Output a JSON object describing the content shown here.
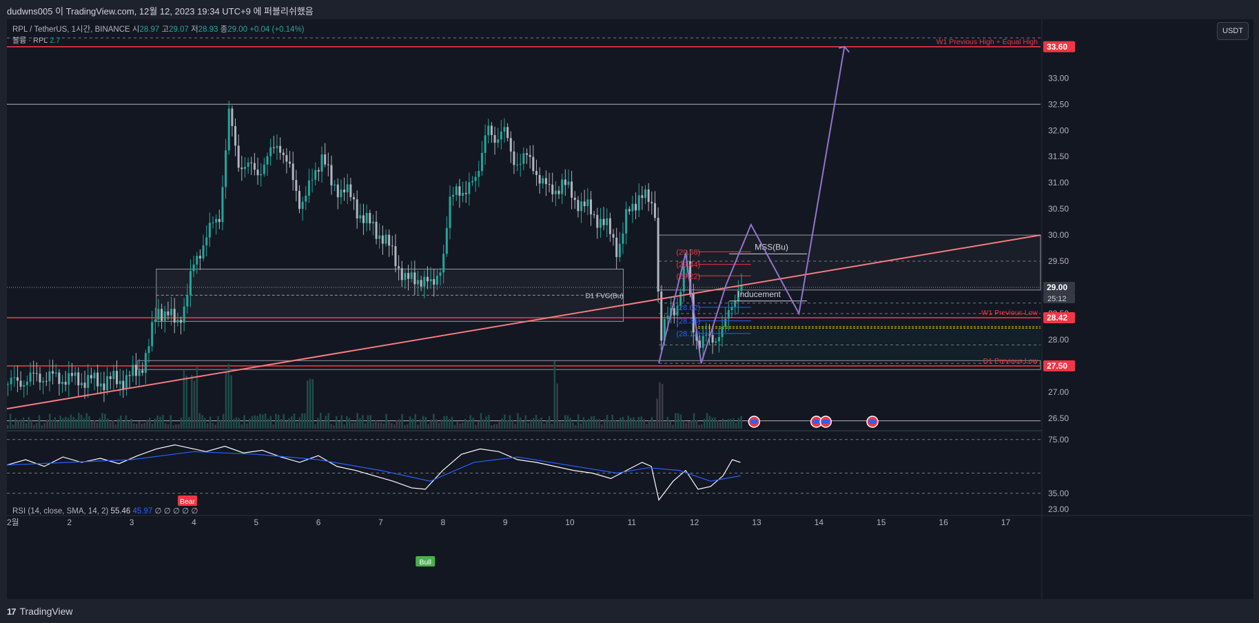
{
  "header": {
    "title": "dudwns005 이 TradingView.com, 12월 12, 2023 19:34 UTC+9 에 퍼블리쉬했음"
  },
  "legend": {
    "symbol": "RPL / TetherUS, 1시간, BINANCE",
    "o_label": "시",
    "o": "28.97",
    "h_label": "고",
    "h": "29.07",
    "l_label": "저",
    "l": "28.93",
    "c_label": "종",
    "c": "29.00",
    "change": "+0.04 (+0.14%)",
    "volume_label": "볼륨 · RPL",
    "volume": "2.7"
  },
  "currency_button": "USDT",
  "rsi_legend": {
    "label": "RSI (14, close, SMA, 14, 2)",
    "value": "55.46",
    "sma": "45.97",
    "placeholders": "∅ ∅ ∅ ∅ ∅"
  },
  "footer": {
    "brand": "TradingView"
  },
  "colors": {
    "background": "#131722",
    "red_line": "#f23645",
    "pink_line": "#f77c80",
    "purple_path": "#9575cd",
    "rsi_line": "#ffffff",
    "rsi_sma": "#2962ff",
    "up_candle": "#26a69a",
    "down_candle": "#b2b5be"
  },
  "chart_data": {
    "type": "candlestick",
    "title": "RPL / TetherUS, 1시간, BINANCE",
    "x_ticks": [
      "2",
      "3",
      "4",
      "5",
      "6",
      "7",
      "8",
      "9",
      "10",
      "11",
      "12",
      "13",
      "14",
      "15",
      "16",
      "17"
    ],
    "x_first_label": "2월",
    "y_ticks": [
      26.5,
      27.0,
      27.5,
      28.0,
      28.5,
      29.0,
      29.5,
      30.0,
      30.5,
      31.0,
      31.5,
      32.0,
      32.5,
      33.0
    ],
    "ylim": [
      26.3,
      33.9
    ],
    "xlim": [
      1.0,
      17.6
    ],
    "price_path": [
      [
        1.0,
        27.15
      ],
      [
        1.5,
        27.3
      ],
      [
        2.0,
        27.25
      ],
      [
        2.5,
        27.2
      ],
      [
        2.9,
        27.25
      ],
      [
        3.1,
        27.4
      ],
      [
        3.25,
        27.8
      ],
      [
        3.4,
        28.6
      ],
      [
        3.55,
        28.5
      ],
      [
        3.7,
        28.3
      ],
      [
        3.85,
        28.7
      ],
      [
        4.0,
        29.5
      ],
      [
        4.2,
        30.0
      ],
      [
        4.4,
        30.4
      ],
      [
        4.55,
        32.3
      ],
      [
        4.7,
        31.4
      ],
      [
        4.85,
        31.3
      ],
      [
        5.0,
        31.2
      ],
      [
        5.2,
        31.5
      ],
      [
        5.35,
        31.8
      ],
      [
        5.5,
        31.3
      ],
      [
        5.7,
        30.6
      ],
      [
        5.85,
        30.9
      ],
      [
        6.05,
        31.6
      ],
      [
        6.2,
        30.9
      ],
      [
        6.4,
        30.9
      ],
      [
        6.6,
        30.5
      ],
      [
        6.8,
        30.2
      ],
      [
        7.0,
        30.0
      ],
      [
        7.2,
        29.6
      ],
      [
        7.4,
        29.1
      ],
      [
        7.6,
        29.2
      ],
      [
        7.8,
        29.0
      ],
      [
        8.0,
        29.6
      ],
      [
        8.1,
        30.6
      ],
      [
        8.2,
        31.0
      ],
      [
        8.35,
        30.7
      ],
      [
        8.55,
        31.3
      ],
      [
        8.7,
        32.0
      ],
      [
        8.8,
        31.8
      ],
      [
        8.95,
        32.1
      ],
      [
        9.1,
        31.4
      ],
      [
        9.3,
        31.5
      ],
      [
        9.5,
        31.2
      ],
      [
        9.7,
        30.8
      ],
      [
        9.9,
        31.0
      ],
      [
        10.1,
        30.7
      ],
      [
        10.3,
        30.5
      ],
      [
        10.5,
        30.3
      ],
      [
        10.7,
        30.0
      ],
      [
        10.8,
        29.7
      ],
      [
        10.95,
        30.4
      ],
      [
        11.15,
        30.8
      ],
      [
        11.3,
        30.6
      ],
      [
        11.4,
        30.5
      ],
      [
        11.47,
        27.95
      ],
      [
        11.62,
        28.5
      ],
      [
        11.75,
        28.7
      ],
      [
        11.9,
        29.5
      ],
      [
        12.0,
        28.3
      ],
      [
        12.1,
        27.9
      ],
      [
        12.2,
        28.0
      ],
      [
        12.35,
        28.05
      ],
      [
        12.5,
        28.2
      ],
      [
        12.6,
        28.6
      ],
      [
        12.72,
        29.0
      ],
      [
        12.78,
        29.0
      ]
    ],
    "current_price": 29.0,
    "countdown": "25:12",
    "horizontal_levels": [
      {
        "label": "W1 Previous High + Equal High",
        "price": 33.6,
        "color": "#f23645"
      },
      {
        "label": "W1 Previous Low",
        "price": 28.42,
        "color": "#f23645"
      },
      {
        "label": "D1 Previous Low",
        "price": 27.5,
        "color": "#f23645"
      },
      {
        "price": 32.5,
        "color": "#b2b5be"
      },
      {
        "price": 26.45,
        "color": "#b2b5be"
      }
    ],
    "price_badges": [
      {
        "value": "33.60",
        "price": 33.6,
        "color": "#f23645"
      },
      {
        "value": "28.42",
        "price": 28.42,
        "color": "#f23645"
      },
      {
        "value": "27.50",
        "price": 27.5,
        "color": "#f23645"
      },
      {
        "value": "29.00",
        "price": 29.0,
        "color": "#363a45"
      }
    ],
    "zones": [
      {
        "label": "D1 FVG(Bu)",
        "x0": 3.4,
        "x1": 10.9,
        "y0": 28.35,
        "y1": 29.35
      },
      {
        "label": "MSS(Bu)",
        "x": 12.9,
        "price": 29.64
      },
      {
        "label": "Inducement",
        "x": 12.9,
        "price": 28.74
      }
    ],
    "fib_labels_red": [
      {
        "label": "(29.68)",
        "price": 29.68
      },
      {
        "label": "(29.44)",
        "price": 29.44
      },
      {
        "label": "(29.22)",
        "price": 29.22
      }
    ],
    "fib_labels_blue": [
      {
        "label": "(28.62)",
        "price": 28.62
      },
      {
        "label": "(28.36)",
        "price": 28.36
      },
      {
        "label": "(28.12)",
        "price": 28.12
      }
    ],
    "trendline": {
      "x0": 1.0,
      "y0": 26.68,
      "x1": 17.6,
      "y1": 30.0
    },
    "projection_path": [
      [
        11.47,
        27.55
      ],
      [
        11.9,
        29.65
      ],
      [
        12.15,
        27.55
      ],
      [
        12.55,
        29.05
      ],
      [
        12.95,
        30.2
      ],
      [
        13.72,
        28.5
      ],
      [
        14.45,
        33.6
      ]
    ],
    "event_markers": [
      13.0,
      14.0,
      14.15,
      14.9
    ],
    "rsi": {
      "ylim": [
        20,
        80
      ],
      "y_ticks": [
        75.0,
        35.0,
        23.0
      ],
      "value": 55.46,
      "sma_value": 45.97,
      "signals": [
        {
          "label": "Bear",
          "x": 3.9
        },
        {
          "label": "Bull",
          "x": 7.72
        }
      ],
      "path": [
        [
          1.0,
          56
        ],
        [
          1.3,
          60
        ],
        [
          1.6,
          55
        ],
        [
          1.9,
          62
        ],
        [
          2.2,
          58
        ],
        [
          2.5,
          61
        ],
        [
          2.8,
          57
        ],
        [
          3.1,
          63
        ],
        [
          3.4,
          68
        ],
        [
          3.7,
          71
        ],
        [
          3.9,
          69
        ],
        [
          4.2,
          66
        ],
        [
          4.5,
          70
        ],
        [
          4.8,
          65
        ],
        [
          5.1,
          67
        ],
        [
          5.4,
          62
        ],
        [
          5.7,
          58
        ],
        [
          6.0,
          63
        ],
        [
          6.3,
          55
        ],
        [
          6.6,
          52
        ],
        [
          6.9,
          48
        ],
        [
          7.2,
          44
        ],
        [
          7.5,
          39
        ],
        [
          7.72,
          38
        ],
        [
          8.0,
          52
        ],
        [
          8.3,
          64
        ],
        [
          8.6,
          68
        ],
        [
          8.9,
          66
        ],
        [
          9.2,
          60
        ],
        [
          9.5,
          58
        ],
        [
          9.8,
          55
        ],
        [
          10.1,
          52
        ],
        [
          10.4,
          50
        ],
        [
          10.7,
          46
        ],
        [
          10.95,
          52
        ],
        [
          11.2,
          58
        ],
        [
          11.35,
          55
        ],
        [
          11.47,
          30
        ],
        [
          11.7,
          44
        ],
        [
          11.9,
          52
        ],
        [
          12.1,
          38
        ],
        [
          12.3,
          40
        ],
        [
          12.5,
          48
        ],
        [
          12.65,
          60
        ],
        [
          12.78,
          58
        ]
      ],
      "sma_path": [
        [
          1.0,
          56
        ],
        [
          2.0,
          58
        ],
        [
          3.0,
          60
        ],
        [
          4.0,
          66
        ],
        [
          5.0,
          64
        ],
        [
          6.0,
          60
        ],
        [
          7.0,
          52
        ],
        [
          7.8,
          44
        ],
        [
          8.5,
          58
        ],
        [
          9.2,
          62
        ],
        [
          10.0,
          56
        ],
        [
          10.8,
          50
        ],
        [
          11.3,
          54
        ],
        [
          11.8,
          52
        ],
        [
          12.3,
          44
        ],
        [
          12.78,
          48
        ]
      ]
    }
  }
}
